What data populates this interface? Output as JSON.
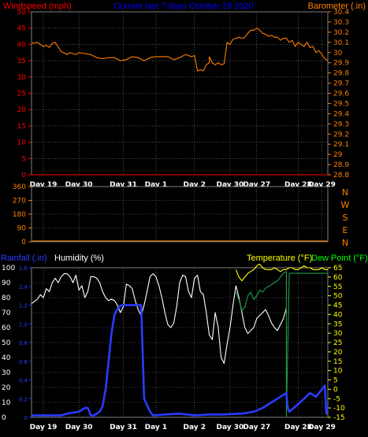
{
  "title": "Current last 7 days October 29 2020",
  "x_labels": [
    "Day 19",
    "Day 30",
    "Day 31",
    "Day 1",
    "Day 2",
    "Day 30",
    "Day 27",
    "Day 28",
    "Day 29"
  ],
  "colors": {
    "wind": "#ff0000",
    "baro": "#ff7f00",
    "title": "#0000ff",
    "compass": "#ff7f00",
    "rain": "#2a3cff",
    "humidity": "#ffffff",
    "temp": "#ffff00",
    "dew": "#00ff00",
    "dew_line": "#1f9a4a",
    "grid": "#808080",
    "axis": "#808080",
    "wind_line": "#ff0000"
  },
  "panel1": {
    "left_label": "Windspeed (mph)",
    "right_label": "Barometer (.in)",
    "left_ticks": [
      "50",
      "45",
      "40",
      "35",
      "30",
      "25",
      "20",
      "15",
      "10",
      "5",
      "0"
    ],
    "right_ticks": [
      "30.4",
      "30.3",
      "30.2",
      "30.1",
      "30",
      "29.9",
      "29.8",
      "29.7",
      "29.6",
      "29.5",
      "29.4",
      "29.3",
      "29.2",
      "29.1",
      "29",
      "28.9",
      "28.8"
    ]
  },
  "panel2": {
    "left_ticks": [
      "360",
      "270",
      "180",
      "90",
      "0"
    ],
    "compass": [
      "N",
      "W",
      "S",
      "E",
      "N"
    ]
  },
  "panel3": {
    "rain_label": "Rainfall (.in)",
    "humidity_label": "Humidity (%)",
    "temp_label": "Temperature (°F)",
    "dew_label": "Dew Point (°F)",
    "humidity_ticks": [
      "100",
      "90",
      "80",
      "70",
      "60",
      "50",
      "40",
      "30",
      "20",
      "10",
      "0"
    ],
    "rain_ticks": [
      "1.6",
      "1.4",
      "1.2",
      "1.0",
      "0.8",
      "0.6",
      "0.4",
      "0.2",
      "0"
    ],
    "temp_ticks": [
      "65",
      "60",
      "55",
      "50",
      "45",
      "40",
      "35",
      "30",
      "25",
      "20",
      "15",
      "10",
      "5",
      "0",
      "-5",
      "-10",
      "-15"
    ]
  },
  "chart_data": [
    {
      "type": "line",
      "title": "Current last 7 days October 29 2020",
      "ylabel": "Windspeed (mph)",
      "y2label": "Barometer (.in)",
      "ylim": [
        0,
        50
      ],
      "y2lim": [
        28.8,
        30.4
      ],
      "series": [
        {
          "name": "Windspeed (mph)",
          "axis": "left",
          "x": [
            0,
            100
          ],
          "values": [
            0,
            0
          ]
        },
        {
          "name": "Barometer (.in)",
          "axis": "right",
          "x": [
            0,
            2,
            4,
            5,
            6,
            7,
            8,
            10,
            12,
            13,
            14,
            15,
            16,
            18,
            20,
            22,
            24,
            26,
            28,
            30,
            32,
            34,
            36,
            38,
            40,
            42,
            44,
            46,
            48,
            50,
            52,
            54,
            55,
            56,
            57,
            58,
            59,
            60,
            60,
            61,
            62,
            63,
            64,
            65,
            66,
            67,
            68,
            69,
            70,
            71,
            72,
            73,
            74,
            75,
            76,
            77,
            78,
            79,
            80,
            81,
            82,
            83,
            84,
            85,
            86,
            87,
            88,
            89,
            90,
            91,
            92,
            93,
            94,
            95,
            96,
            97,
            98,
            99,
            100
          ],
          "values": [
            30.09,
            30.1,
            30.06,
            30.07,
            30.05,
            30.09,
            30.1,
            30.01,
            29.98,
            30.0,
            29.99,
            29.98,
            30.0,
            29.99,
            29.98,
            29.95,
            29.94,
            29.95,
            29.95,
            29.92,
            29.93,
            29.96,
            29.95,
            29.92,
            29.95,
            29.96,
            29.96,
            29.96,
            29.93,
            29.95,
            29.98,
            29.96,
            29.97,
            29.82,
            29.83,
            29.82,
            29.88,
            29.9,
            29.96,
            29.9,
            29.88,
            29.9,
            29.88,
            29.89,
            30.1,
            30.08,
            30.13,
            30.14,
            30.15,
            30.14,
            30.15,
            30.19,
            30.22,
            30.22,
            30.24,
            30.22,
            30.19,
            30.18,
            30.16,
            30.17,
            30.15,
            30.15,
            30.12,
            30.14,
            30.14,
            30.1,
            30.12,
            30.06,
            30.1,
            30.08,
            30.06,
            30.1,
            30.05,
            30.06,
            30.0,
            30.02,
            29.98,
            29.94,
            29.92
          ]
        }
      ]
    },
    {
      "type": "line",
      "ylim": [
        0,
        360
      ],
      "series": [
        {
          "name": "Wind direction",
          "x": [
            0,
            100
          ],
          "values": [
            0,
            0
          ]
        }
      ]
    },
    {
      "type": "line",
      "ylabel": "Humidity (%)",
      "y2label": "Temperature (°F)",
      "ylim": [
        0,
        100
      ],
      "y2lim": [
        -15,
        65
      ],
      "rain_lim": [
        0,
        1.6
      ],
      "series": [
        {
          "name": "Humidity (%)",
          "axis": "humidity",
          "x": [
            0,
            2,
            3,
            4,
            5,
            6,
            7,
            8,
            9,
            10,
            11,
            12,
            13,
            14,
            15,
            16,
            17,
            18,
            19,
            20,
            21,
            22,
            23,
            24,
            25,
            26,
            27,
            28,
            29,
            30,
            31,
            32,
            33,
            34,
            35,
            36,
            37,
            38,
            39,
            40,
            41,
            42,
            43,
            44,
            45,
            46,
            47,
            48,
            49,
            50,
            51,
            52,
            53,
            54,
            55,
            56,
            57,
            58,
            59,
            60,
            61,
            62,
            63,
            64,
            65,
            66,
            67,
            68,
            69
          ],
          "values": [
            76,
            79,
            82,
            80,
            86,
            84,
            90,
            93,
            90,
            94,
            96,
            96,
            94,
            90,
            95,
            85,
            88,
            80,
            84,
            94,
            94,
            93,
            90,
            84,
            80,
            78,
            79,
            78,
            75,
            70,
            74,
            89,
            88,
            86,
            78,
            72,
            68,
            75,
            84,
            94,
            96,
            94,
            88,
            80,
            70,
            62,
            60,
            63,
            74,
            90,
            95,
            94,
            84,
            80,
            93,
            95,
            84,
            82,
            70,
            55,
            52,
            70,
            60,
            40,
            36,
            49,
            60,
            75,
            88
          ]
        },
        {
          "name": "Humidity (%)",
          "axis": "humidity",
          "x": [
            69,
            70,
            71,
            72,
            73,
            74,
            75,
            76,
            77,
            78,
            79,
            80,
            81,
            82,
            83,
            84,
            85,
            86
          ],
          "values": [
            88,
            80,
            70,
            60,
            56,
            58,
            60,
            66,
            68,
            70,
            72,
            68,
            63,
            60,
            58,
            62,
            66,
            73
          ]
        },
        {
          "name": "Temperature (°F)",
          "axis": "temp",
          "x": [
            69,
            70,
            71,
            72,
            73,
            74,
            75,
            76,
            77,
            78,
            79,
            80,
            81,
            82,
            83,
            84,
            85,
            86,
            87,
            88,
            89,
            90,
            91,
            92,
            93,
            94,
            95,
            96,
            97,
            98,
            99,
            100
          ],
          "values": [
            64,
            60,
            58,
            60,
            62,
            63,
            64,
            66,
            67,
            65,
            64,
            64,
            64,
            65,
            64,
            63,
            64,
            64,
            65,
            65,
            64,
            64,
            65,
            66,
            65,
            65,
            64,
            64,
            64,
            65,
            64,
            64
          ]
        },
        {
          "name": "Dew Point (°F)",
          "axis": "temp",
          "x": [
            69,
            70,
            71,
            72,
            73,
            74,
            75,
            76,
            77,
            78,
            79,
            80,
            81,
            82,
            83,
            84,
            85,
            86,
            86,
            87,
            100
          ],
          "values": [
            52,
            48,
            42,
            44,
            50,
            52,
            48,
            50,
            53,
            52,
            54,
            55,
            56,
            57,
            58,
            60,
            62,
            63,
            -15,
            62,
            62
          ]
        },
        {
          "name": "Rainfall (.in)",
          "axis": "rain",
          "x": [
            0,
            10,
            12,
            16,
            18,
            19,
            20,
            21,
            22,
            23,
            24,
            25,
            26,
            27,
            28,
            29,
            30,
            30.5,
            31,
            36,
            37,
            38,
            40,
            41,
            45,
            50,
            55,
            60,
            65,
            70,
            71,
            75,
            78,
            82,
            86,
            86.5,
            87,
            90,
            92,
            94,
            96,
            98,
            99,
            99.5,
            100
          ],
          "values": [
            0.02,
            0.02,
            0.04,
            0.06,
            0.1,
            0.1,
            0.02,
            0.02,
            0.04,
            0.06,
            0.12,
            0.3,
            0.6,
            0.9,
            1.1,
            1.16,
            1.19,
            1.2,
            1.2,
            1.2,
            1.2,
            0.2,
            0.06,
            0.02,
            0.03,
            0.04,
            0.02,
            0.03,
            0.03,
            0.04,
            0.04,
            0.06,
            0.1,
            0.18,
            0.26,
            0.1,
            0.06,
            0.14,
            0.2,
            0.26,
            0.22,
            0.3,
            0.34,
            0.04,
            0.12
          ]
        }
      ]
    }
  ]
}
